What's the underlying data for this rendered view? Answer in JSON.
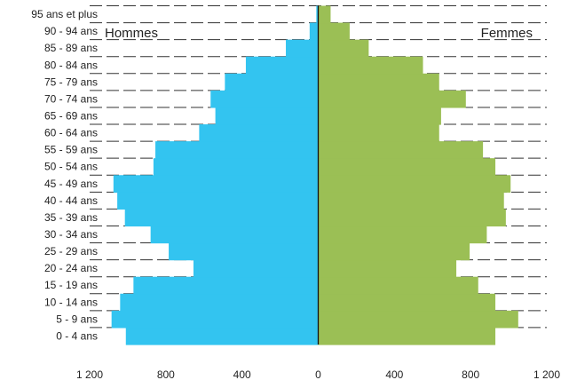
{
  "chart_data": {
    "type": "bar",
    "orientation": "horizontal-pyramid",
    "categories": [
      "0 - 4 ans",
      "5 - 9 ans",
      "10 - 14 ans",
      "15 - 19 ans",
      "20 - 24 ans",
      "25 - 29 ans",
      "30 - 34 ans",
      "35 - 39 ans",
      "40 - 44 ans",
      "45 - 49 ans",
      "50 - 54 ans",
      "55 - 59 ans",
      "60 - 64 ans",
      "65 - 69 ans",
      "70 - 74 ans",
      "75 - 79 ans",
      "80 - 84 ans",
      "85 - 89 ans",
      "90 - 94 ans",
      "95 ans et plus"
    ],
    "series": [
      {
        "name": "Hommes",
        "color": "#33c4f0",
        "side": "left",
        "values": [
          1010,
          1085,
          1040,
          970,
          655,
          785,
          880,
          1015,
          1055,
          1075,
          865,
          855,
          625,
          540,
          565,
          490,
          380,
          170,
          45,
          10
        ]
      },
      {
        "name": "Femmes",
        "color": "#9bbf55",
        "side": "right",
        "values": [
          930,
          1050,
          930,
          840,
          725,
          795,
          885,
          985,
          975,
          1010,
          930,
          865,
          635,
          645,
          775,
          635,
          550,
          265,
          165,
          65
        ]
      }
    ],
    "xlim": [
      -1200,
      1200
    ],
    "xticks": [
      -1200,
      -800,
      -400,
      0,
      400,
      800,
      1200
    ],
    "xtick_labels": [
      "1 200",
      "800",
      "400",
      "0",
      "400",
      "800",
      "1 200"
    ],
    "grid": "dashed horizontal lines",
    "legend": [
      "Hommes",
      "Femmes"
    ],
    "legend_placement": "top-left and top-right"
  }
}
